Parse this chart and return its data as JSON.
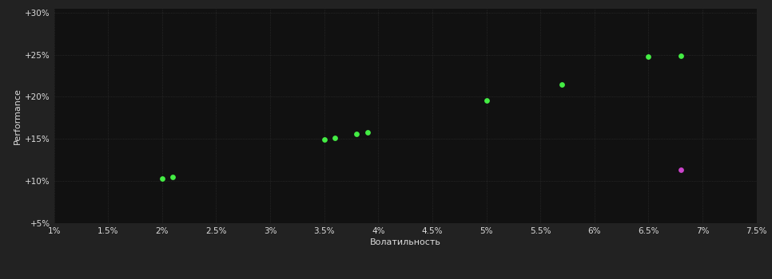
{
  "background_color": "#222222",
  "plot_bg_color": "#111111",
  "grid_color": "#3a3a3a",
  "xlabel": "Волатильность",
  "ylabel": "Performance",
  "xlim": [
    0.01,
    0.075
  ],
  "ylim": [
    0.05,
    0.305
  ],
  "xticks": [
    0.01,
    0.015,
    0.02,
    0.025,
    0.03,
    0.035,
    0.04,
    0.045,
    0.05,
    0.055,
    0.06,
    0.065,
    0.07,
    0.075
  ],
  "xtick_labels": [
    "1%",
    "1.5%",
    "2%",
    "2.5%",
    "3%",
    "3.5%",
    "4%",
    "4.5%",
    "5%",
    "5.5%",
    "6%",
    "6.5%",
    "7%",
    "7.5%"
  ],
  "yticks": [
    0.05,
    0.1,
    0.15,
    0.2,
    0.25,
    0.3
  ],
  "ytick_labels": [
    "+5%",
    "+10%",
    "+15%",
    "+20%",
    "+25%",
    "+30%"
  ],
  "green_points": [
    [
      0.02,
      0.103
    ],
    [
      0.021,
      0.105
    ],
    [
      0.035,
      0.149
    ],
    [
      0.036,
      0.151
    ],
    [
      0.038,
      0.156
    ],
    [
      0.039,
      0.158
    ],
    [
      0.05,
      0.196
    ],
    [
      0.057,
      0.215
    ],
    [
      0.065,
      0.248
    ],
    [
      0.068,
      0.249
    ]
  ],
  "magenta_points": [
    [
      0.068,
      0.113
    ]
  ],
  "green_color": "#44ee44",
  "magenta_color": "#cc44cc",
  "dot_size": 15,
  "text_color": "#dddddd",
  "axis_label_fontsize": 8,
  "tick_fontsize": 7.5
}
